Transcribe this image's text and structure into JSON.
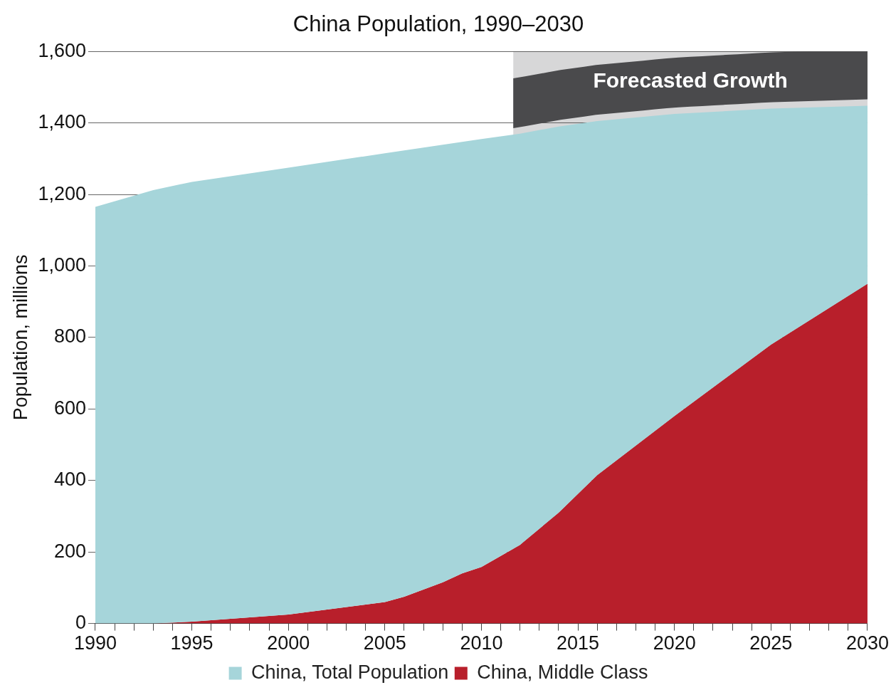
{
  "chart_data": {
    "type": "area",
    "title": "China Population, 1990–2030",
    "ylabel": "Population, millions",
    "series": [
      {
        "name": "China, Total Population",
        "color": "#a6d5da",
        "x": [
          1990,
          1993,
          1995,
          2000,
          2005,
          2006,
          2008,
          2009,
          2010,
          2012,
          2014,
          2016,
          2020,
          2025,
          2030
        ],
        "values": [
          1165,
          1212,
          1235,
          1275,
          1315,
          1323,
          1339,
          1347,
          1355,
          1370,
          1390,
          1405,
          1425,
          1440,
          1448
        ]
      },
      {
        "name": "China, Middle Class",
        "color": "#b81f2b",
        "x": [
          1990,
          1993,
          1995,
          2000,
          2005,
          2006,
          2008,
          2009,
          2010,
          2012,
          2014,
          2016,
          2020,
          2025,
          2030
        ],
        "values": [
          0,
          0,
          5,
          25,
          60,
          75,
          115,
          140,
          158,
          220,
          310,
          415,
          580,
          780,
          950
        ]
      }
    ],
    "xlim": [
      1990,
      2030
    ],
    "xticks": [
      1990,
      {
        "value": 1991,
        "label": null
      },
      {
        "value": 1992,
        "label": null
      },
      {
        "value": 1993,
        "label": null
      },
      {
        "value": 1994,
        "label": null
      },
      1995,
      {
        "value": 1996,
        "label": null
      },
      {
        "value": 1997,
        "label": null
      },
      {
        "value": 1998,
        "label": null
      },
      {
        "value": 1999,
        "label": null
      },
      2000,
      {
        "value": 2001,
        "label": null
      },
      {
        "value": 2002,
        "label": null
      },
      {
        "value": 2003,
        "label": null
      },
      {
        "value": 2004,
        "label": null
      },
      2005,
      {
        "value": 2006,
        "label": null
      },
      {
        "value": 2007,
        "label": null
      },
      {
        "value": 2008,
        "label": null
      },
      {
        "value": 2009,
        "label": null
      },
      2010,
      {
        "value": 2011,
        "label": null
      },
      {
        "value": 2012,
        "label": null
      },
      {
        "value": 2013,
        "label": null
      },
      {
        "value": 2014,
        "label": null
      },
      2015,
      {
        "value": 2016,
        "label": null
      },
      {
        "value": 2017,
        "label": null
      },
      {
        "value": 2018,
        "label": null
      },
      {
        "value": 2019,
        "label": null
      },
      2020,
      {
        "value": 2021,
        "label": null
      },
      {
        "value": 2022,
        "label": null
      },
      {
        "value": 2023,
        "label": null
      },
      {
        "value": 2024,
        "label": null
      },
      2025,
      {
        "value": 2026,
        "label": null
      },
      {
        "value": 2027,
        "label": null
      },
      {
        "value": 2028,
        "label": null
      },
      {
        "value": 2029,
        "label": null
      },
      2030
    ],
    "ylim": [
      0,
      1600
    ],
    "yticks": [
      0,
      200,
      400,
      600,
      800,
      {
        "value": 1000,
        "label": "1,000"
      },
      {
        "value": 1200,
        "label": "1,200"
      },
      {
        "value": 1400,
        "label": "1,400"
      },
      {
        "value": 1600,
        "label": "1,600"
      }
    ],
    "bands": [
      {
        "axis": "x",
        "from": 2011.65,
        "to": 2030,
        "label": "Forecasted Growth",
        "color": "#4a4a4c"
      }
    ],
    "grid": "y",
    "legend": "bottom",
    "marker": "none"
  }
}
